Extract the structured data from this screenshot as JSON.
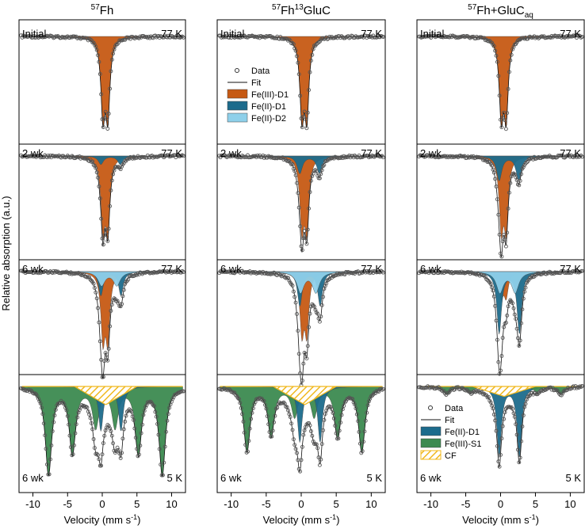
{
  "chart_data": {
    "type": "mossbauer-spectra",
    "ylabel": "Relative absorption (a.u.)",
    "xlabel": "Velocity (mm s-1)",
    "xlabel_main": "Velocity (mm s",
    "xlabel_sup": "-1",
    "xlabel_close": ")",
    "xlim": [
      -12,
      12
    ],
    "xticks": [
      -10,
      -5,
      0,
      5,
      10
    ],
    "xtick_labels": [
      "-10",
      "-5",
      "0",
      "5",
      "10"
    ],
    "colors": {
      "fe3_d1": "#C65A14",
      "fe2_d1": "#1C6B8C",
      "fe2_d2": "#8ED0EA",
      "fe3_s1": "#3C8A50",
      "cf": "#F0B81E",
      "data": "#555555"
    },
    "panels": [
      {
        "title_pre": "57",
        "title_main": "Fh",
        "title_mid_sup": "",
        "title_post": "",
        "title_sub": "",
        "spectra": [
          {
            "label": "Initial",
            "temp": "77 K",
            "components": [
              {
                "type": "doublet",
                "comp": "fe3_d1",
                "center": 0.45,
                "split": 0.7,
                "depth": 1.0,
                "width": 0.35
              }
            ]
          },
          {
            "label": "2 wk",
            "temp": "77 K",
            "components": [
              {
                "type": "doublet",
                "comp": "fe3_d1",
                "center": 0.45,
                "split": 0.7,
                "depth": 1.0,
                "width": 0.35
              },
              {
                "type": "doublet",
                "comp": "fe2_d1",
                "center": 1.2,
                "split": 2.8,
                "depth": 0.12,
                "width": 0.45
              }
            ]
          },
          {
            "label": "6 wk",
            "temp": "77 K",
            "components": [
              {
                "type": "doublet",
                "comp": "fe3_d1",
                "center": 0.45,
                "split": 0.7,
                "depth": 0.95,
                "width": 0.35
              },
              {
                "type": "doublet",
                "comp": "fe2_d1",
                "center": 1.25,
                "split": 2.9,
                "depth": 0.35,
                "width": 0.4
              },
              {
                "type": "doublet",
                "comp": "fe2_d2",
                "center": 1.0,
                "split": 2.2,
                "depth": 0.2,
                "width": 0.6
              }
            ]
          },
          {
            "label": "6 wk",
            "temp": "5 K",
            "components": [
              {
                "type": "sextet",
                "comp": "fe3_s1",
                "center": 0.45,
                "bhf": 8.2,
                "depth": 0.95,
                "width": 0.55
              },
              {
                "type": "doublet",
                "comp": "fe2_d1",
                "center": 1.25,
                "split": 2.9,
                "depth": 0.6,
                "width": 0.4
              },
              {
                "type": "cf",
                "comp": "cf",
                "center": 0.5,
                "span": 9.0,
                "depth": 0.22
              }
            ]
          }
        ]
      },
      {
        "title_pre": "57",
        "title_main": "Fh",
        "title_mid_sup": "13",
        "title_post": "GluC",
        "title_sub": "",
        "spectra": [
          {
            "label": "Initial",
            "temp": "77 K",
            "components": [
              {
                "type": "doublet",
                "comp": "fe3_d1",
                "center": 0.45,
                "split": 0.7,
                "depth": 1.0,
                "width": 0.35
              }
            ]
          },
          {
            "label": "2 wk",
            "temp": "77 K",
            "components": [
              {
                "type": "doublet",
                "comp": "fe3_d1",
                "center": 0.45,
                "split": 0.7,
                "depth": 1.0,
                "width": 0.35
              },
              {
                "type": "doublet",
                "comp": "fe2_d1",
                "center": 1.2,
                "split": 2.8,
                "depth": 0.25,
                "width": 0.45
              }
            ]
          },
          {
            "label": "6 wk",
            "temp": "77 K",
            "components": [
              {
                "type": "doublet",
                "comp": "fe3_d1",
                "center": 0.45,
                "split": 0.7,
                "depth": 0.85,
                "width": 0.35
              },
              {
                "type": "doublet",
                "comp": "fe2_d1",
                "center": 1.25,
                "split": 2.9,
                "depth": 0.5,
                "width": 0.4
              },
              {
                "type": "doublet",
                "comp": "fe2_d2",
                "center": 1.0,
                "split": 2.2,
                "depth": 0.3,
                "width": 0.6
              }
            ]
          },
          {
            "label": "6 wk",
            "temp": "5 K",
            "components": [
              {
                "type": "sextet",
                "comp": "fe3_s1",
                "center": 0.45,
                "bhf": 8.2,
                "depth": 0.7,
                "width": 0.55
              },
              {
                "type": "doublet",
                "comp": "fe2_d1",
                "center": 1.25,
                "split": 2.9,
                "depth": 0.75,
                "width": 0.4
              },
              {
                "type": "cf",
                "comp": "cf",
                "center": 0.5,
                "span": 9.0,
                "depth": 0.22
              }
            ]
          }
        ]
      },
      {
        "title_pre": "57",
        "title_main": "Fh+GluC",
        "title_mid_sup": "",
        "title_post": "",
        "title_sub": "aq",
        "spectra": [
          {
            "label": "Initial",
            "temp": "77 K",
            "components": [
              {
                "type": "doublet",
                "comp": "fe3_d1",
                "center": 0.45,
                "split": 0.7,
                "depth": 1.0,
                "width": 0.35
              }
            ]
          },
          {
            "label": "2 wk",
            "temp": "77 K",
            "components": [
              {
                "type": "doublet",
                "comp": "fe3_d1",
                "center": 0.45,
                "split": 0.7,
                "depth": 1.0,
                "width": 0.35
              },
              {
                "type": "doublet",
                "comp": "fe2_d1",
                "center": 1.2,
                "split": 2.8,
                "depth": 0.35,
                "width": 0.45
              }
            ]
          },
          {
            "label": "6 wk",
            "temp": "77 K",
            "components": [
              {
                "type": "doublet",
                "comp": "fe3_d1",
                "center": 0.45,
                "split": 0.7,
                "depth": 0.35,
                "width": 0.35
              },
              {
                "type": "doublet",
                "comp": "fe2_d1",
                "center": 1.25,
                "split": 2.9,
                "depth": 0.9,
                "width": 0.4
              },
              {
                "type": "doublet",
                "comp": "fe2_d2",
                "center": 1.0,
                "split": 2.2,
                "depth": 0.3,
                "width": 0.6
              }
            ]
          },
          {
            "label": "6 wk",
            "temp": "5 K",
            "components": [
              {
                "type": "doublet",
                "comp": "fe2_d1",
                "center": 1.25,
                "split": 2.9,
                "depth": 0.95,
                "width": 0.4
              },
              {
                "type": "sextet",
                "comp": "fe3_s1",
                "center": 0.45,
                "bhf": 8.2,
                "depth": 0.08,
                "width": 0.55
              },
              {
                "type": "cf",
                "comp": "cf",
                "center": 0.5,
                "span": 9.0,
                "depth": 0.12
              }
            ]
          }
        ]
      }
    ],
    "legends": [
      {
        "panel": 1,
        "spectrum": 0,
        "placement": "center",
        "items": [
          {
            "kind": "data",
            "label": "Data"
          },
          {
            "kind": "fit",
            "label": "Fit"
          },
          {
            "kind": "fe3_d1",
            "label": "Fe(III)-D1"
          },
          {
            "kind": "fe2_d1",
            "label": "Fe(II)-D1"
          },
          {
            "kind": "fe2_d2",
            "label": "Fe(II)-D2"
          }
        ]
      },
      {
        "panel": 2,
        "spectrum": 3,
        "placement": "bottom-left",
        "items": [
          {
            "kind": "data",
            "label": "Data"
          },
          {
            "kind": "fit",
            "label": "Fit"
          },
          {
            "kind": "fe2_d1",
            "label": "Fe(II)-D1"
          },
          {
            "kind": "fe3_s1",
            "label": "Fe(III)-S1"
          },
          {
            "kind": "cf",
            "label": "CF"
          }
        ]
      }
    ]
  }
}
